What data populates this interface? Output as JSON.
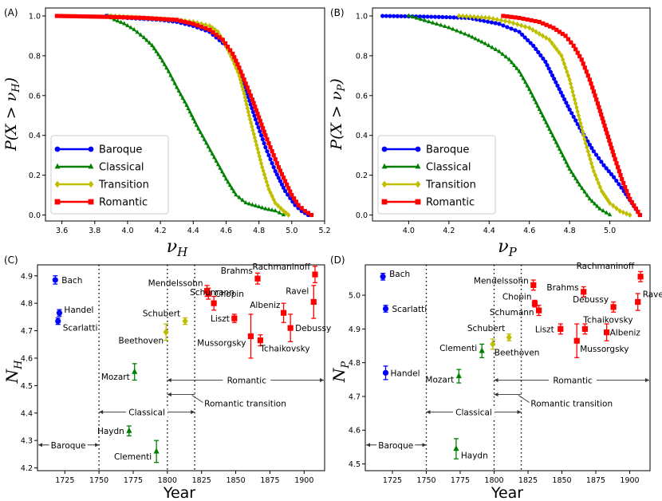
{
  "chart_data": [
    {
      "panel_label": "(A)",
      "type": "line",
      "xlabel": "νH",
      "ylabel": "P(X > νH)",
      "xlim": [
        3.5,
        5.2
      ],
      "ylim": [
        -0.03,
        1.04
      ],
      "xticks": [
        "3.6",
        "3.8",
        "4.0",
        "4.2",
        "4.4",
        "4.6",
        "4.8",
        "5.0",
        "5.2"
      ],
      "yticks": [
        "0.0",
        "0.2",
        "0.4",
        "0.6",
        "0.8",
        "1.0"
      ],
      "legend_position": "lower-left",
      "series": [
        {
          "name": "Baroque",
          "color": "#0000ff",
          "marker": "circle",
          "x": [
            3.87,
            4.0,
            4.1,
            4.2,
            4.3,
            4.4,
            4.5,
            4.6,
            4.66,
            4.72,
            4.78,
            4.84,
            4.9,
            4.96,
            5.02,
            5.06,
            5.1
          ],
          "y": [
            1.0,
            0.99,
            0.985,
            0.98,
            0.97,
            0.95,
            0.92,
            0.85,
            0.76,
            0.63,
            0.48,
            0.34,
            0.22,
            0.12,
            0.05,
            0.02,
            0.0
          ]
        },
        {
          "name": "Classical",
          "color": "#008000",
          "marker": "triangle",
          "x": [
            3.88,
            3.92,
            3.98,
            4.04,
            4.1,
            4.15,
            4.2,
            4.25,
            4.3,
            4.36,
            4.42,
            4.48,
            4.54,
            4.6,
            4.66,
            4.72,
            4.78,
            4.84,
            4.9,
            4.95
          ],
          "y": [
            1.0,
            0.98,
            0.96,
            0.93,
            0.89,
            0.85,
            0.79,
            0.72,
            0.64,
            0.55,
            0.45,
            0.36,
            0.27,
            0.18,
            0.1,
            0.06,
            0.045,
            0.03,
            0.02,
            0.0
          ]
        },
        {
          "name": "Transition",
          "color": "#bfbf00",
          "marker": "diamond",
          "x": [
            3.9,
            4.1,
            4.3,
            4.4,
            4.5,
            4.55,
            4.6,
            4.64,
            4.68,
            4.71,
            4.74,
            4.78,
            4.82,
            4.86,
            4.9,
            4.95,
            4.98
          ],
          "y": [
            1.0,
            0.99,
            0.98,
            0.97,
            0.95,
            0.92,
            0.85,
            0.78,
            0.7,
            0.61,
            0.5,
            0.37,
            0.24,
            0.13,
            0.06,
            0.02,
            0.0
          ]
        },
        {
          "name": "Romantic",
          "color": "#ff0000",
          "marker": "square",
          "x": [
            3.57,
            3.9,
            4.1,
            4.3,
            4.4,
            4.5,
            4.58,
            4.64,
            4.68,
            4.72,
            4.76,
            4.8,
            4.84,
            4.88,
            4.92,
            4.96,
            5.0,
            5.04,
            5.08,
            5.12
          ],
          "y": [
            1.0,
            0.995,
            0.99,
            0.98,
            0.96,
            0.93,
            0.88,
            0.81,
            0.74,
            0.66,
            0.58,
            0.49,
            0.4,
            0.32,
            0.24,
            0.17,
            0.1,
            0.05,
            0.02,
            0.0
          ]
        }
      ]
    },
    {
      "panel_label": "(B)",
      "type": "line",
      "xlabel": "νP",
      "ylabel": "P(X > νP)",
      "xlim": [
        3.82,
        5.2
      ],
      "ylim": [
        -0.03,
        1.04
      ],
      "xticks": [
        "4.0",
        "4.2",
        "4.4",
        "4.6",
        "4.8",
        "5.0"
      ],
      "yticks": [
        "0.0",
        "0.2",
        "0.4",
        "0.6",
        "0.8",
        "1.0"
      ],
      "legend_position": "lower-left",
      "series": [
        {
          "name": "Baroque",
          "color": "#0000ff",
          "marker": "circle",
          "x": [
            3.87,
            4.0,
            4.15,
            4.3,
            4.45,
            4.55,
            4.62,
            4.68,
            4.74,
            4.8,
            4.86,
            4.92,
            4.97,
            5.02,
            5.07,
            5.11,
            5.15
          ],
          "y": [
            1.0,
            0.998,
            0.995,
            0.99,
            0.96,
            0.92,
            0.85,
            0.77,
            0.65,
            0.53,
            0.42,
            0.32,
            0.25,
            0.19,
            0.12,
            0.06,
            0.0
          ]
        },
        {
          "name": "Classical",
          "color": "#008000",
          "marker": "triangle",
          "x": [
            4.0,
            4.1,
            4.2,
            4.3,
            4.38,
            4.45,
            4.5,
            4.55,
            4.6,
            4.65,
            4.7,
            4.75,
            4.8,
            4.85,
            4.9,
            4.95,
            5.0
          ],
          "y": [
            1.0,
            0.97,
            0.94,
            0.9,
            0.86,
            0.82,
            0.78,
            0.72,
            0.63,
            0.53,
            0.43,
            0.33,
            0.23,
            0.15,
            0.08,
            0.03,
            0.0
          ]
        },
        {
          "name": "Transition",
          "color": "#bfbf00",
          "marker": "diamond",
          "x": [
            4.25,
            4.4,
            4.5,
            4.6,
            4.7,
            4.76,
            4.8,
            4.84,
            4.88,
            4.92,
            4.96,
            5.0,
            5.05,
            5.1
          ],
          "y": [
            1.0,
            0.99,
            0.97,
            0.94,
            0.88,
            0.8,
            0.68,
            0.52,
            0.36,
            0.22,
            0.12,
            0.06,
            0.02,
            0.0
          ]
        },
        {
          "name": "Romantic",
          "color": "#ff0000",
          "marker": "square",
          "x": [
            4.47,
            4.55,
            4.65,
            4.72,
            4.78,
            4.82,
            4.86,
            4.9,
            4.94,
            4.98,
            5.02,
            5.06,
            5.1,
            5.15
          ],
          "y": [
            1.0,
            0.99,
            0.97,
            0.94,
            0.9,
            0.85,
            0.78,
            0.68,
            0.56,
            0.43,
            0.3,
            0.18,
            0.08,
            0.0
          ]
        }
      ]
    },
    {
      "panel_label": "(C)",
      "type": "scatter",
      "xlabel": "Year",
      "ylabel": "NH",
      "xlim": [
        1705,
        1915
      ],
      "ylim": [
        4.19,
        4.94
      ],
      "xticks": [
        "1725",
        "1750",
        "1775",
        "1800",
        "1825",
        "1850",
        "1875",
        "1900"
      ],
      "yticks": [
        "4.2",
        "4.3",
        "4.4",
        "4.5",
        "4.6",
        "4.7",
        "4.8",
        "4.9"
      ],
      "period_lines": [
        1750,
        1800,
        1820
      ],
      "periods": [
        "Baroque",
        "Classical",
        "Romantic",
        "Romantic transition"
      ],
      "points": [
        {
          "composer": "Bach",
          "year": 1718,
          "value": 4.885,
          "err": 0.015,
          "era": "Baroque"
        },
        {
          "composer": "Handel",
          "year": 1721,
          "value": 4.765,
          "err": 0.012,
          "era": "Baroque"
        },
        {
          "composer": "Scarlatti",
          "year": 1720,
          "value": 4.735,
          "err": 0.012,
          "era": "Baroque"
        },
        {
          "composer": "Haydn",
          "year": 1772,
          "value": 4.335,
          "err": 0.018,
          "era": "Classical"
        },
        {
          "composer": "Mozart",
          "year": 1776,
          "value": 4.55,
          "err": 0.03,
          "era": "Classical"
        },
        {
          "composer": "Clementi",
          "year": 1792,
          "value": 4.26,
          "err": 0.04,
          "era": "Classical"
        },
        {
          "composer": "Beethoven",
          "year": 1799,
          "value": 4.695,
          "err": 0.03,
          "era": "Transition"
        },
        {
          "composer": "Schubert",
          "year": 1813,
          "value": 4.735,
          "err": 0.012,
          "era": "Transition"
        },
        {
          "composer": "Mendelssohn",
          "year": 1829,
          "value": 4.845,
          "err": 0.02,
          "era": "Romantic"
        },
        {
          "composer": "Chopin",
          "year": 1830,
          "value": 4.835,
          "err": 0.02,
          "era": "Romantic"
        },
        {
          "composer": "Schumann",
          "year": 1834,
          "value": 4.8,
          "err": 0.025,
          "era": "Romantic"
        },
        {
          "composer": "Liszt",
          "year": 1849,
          "value": 4.745,
          "err": 0.015,
          "era": "Romantic"
        },
        {
          "composer": "Brahms",
          "year": 1866,
          "value": 4.89,
          "err": 0.02,
          "era": "Romantic"
        },
        {
          "composer": "Mussorgsky",
          "year": 1861,
          "value": 4.68,
          "err": 0.08,
          "era": "Romantic"
        },
        {
          "composer": "Tchaikovsky",
          "year": 1868,
          "value": 4.665,
          "err": 0.02,
          "era": "Romantic"
        },
        {
          "composer": "Albeniz",
          "year": 1885,
          "value": 4.765,
          "err": 0.035,
          "era": "Romantic"
        },
        {
          "composer": "Debussy",
          "year": 1890,
          "value": 4.71,
          "err": 0.05,
          "era": "Romantic"
        },
        {
          "composer": "Ravel",
          "year": 1907,
          "value": 4.805,
          "err": 0.06,
          "era": "Romantic"
        },
        {
          "composer": "Rachmaninoff",
          "year": 1908,
          "value": 4.905,
          "err": 0.03,
          "era": "Romantic"
        }
      ]
    },
    {
      "panel_label": "(D)",
      "type": "scatter",
      "xlabel": "Year",
      "ylabel": "NP",
      "xlim": [
        1705,
        1915
      ],
      "ylim": [
        4.48,
        5.09
      ],
      "xticks": [
        "1725",
        "1750",
        "1775",
        "1800",
        "1825",
        "1850",
        "1875",
        "1900"
      ],
      "yticks": [
        "4.5",
        "4.6",
        "4.7",
        "4.8",
        "4.9",
        "5.0"
      ],
      "period_lines": [
        1750,
        1800,
        1820
      ],
      "periods": [
        "Baroque",
        "Classical",
        "Romantic",
        "Romantic transition"
      ],
      "points": [
        {
          "composer": "Bach",
          "year": 1718,
          "value": 5.055,
          "err": 0.01,
          "era": "Baroque"
        },
        {
          "composer": "Scarlatti",
          "year": 1720,
          "value": 4.96,
          "err": 0.01,
          "era": "Baroque"
        },
        {
          "composer": "Handel",
          "year": 1720,
          "value": 4.77,
          "err": 0.02,
          "era": "Baroque"
        },
        {
          "composer": "Haydn",
          "year": 1772,
          "value": 4.545,
          "err": 0.03,
          "era": "Classical"
        },
        {
          "composer": "Mozart",
          "year": 1774,
          "value": 4.76,
          "err": 0.02,
          "era": "Classical"
        },
        {
          "composer": "Clementi",
          "year": 1791,
          "value": 4.835,
          "err": 0.02,
          "era": "Classical"
        },
        {
          "composer": "Beethoven",
          "year": 1799,
          "value": 4.855,
          "err": 0.015,
          "era": "Transition"
        },
        {
          "composer": "Schubert",
          "year": 1811,
          "value": 4.875,
          "err": 0.01,
          "era": "Transition"
        },
        {
          "composer": "Mendelssohn",
          "year": 1829,
          "value": 5.03,
          "err": 0.015,
          "era": "Romantic"
        },
        {
          "composer": "Chopin",
          "year": 1830,
          "value": 4.975,
          "err": 0.01,
          "era": "Romantic"
        },
        {
          "composer": "Schumann",
          "year": 1833,
          "value": 4.955,
          "err": 0.015,
          "era": "Romantic"
        },
        {
          "composer": "Liszt",
          "year": 1849,
          "value": 4.9,
          "err": 0.015,
          "era": "Romantic"
        },
        {
          "composer": "Brahms",
          "year": 1866,
          "value": 5.01,
          "err": 0.015,
          "era": "Romantic"
        },
        {
          "composer": "Mussorgsky",
          "year": 1861,
          "value": 4.865,
          "err": 0.05,
          "era": "Romantic"
        },
        {
          "composer": "Tchaikovsky",
          "year": 1867,
          "value": 4.9,
          "err": 0.015,
          "era": "Romantic"
        },
        {
          "composer": "Albeniz",
          "year": 1883,
          "value": 4.89,
          "err": 0.025,
          "era": "Romantic"
        },
        {
          "composer": "Debussy",
          "year": 1888,
          "value": 4.965,
          "err": 0.015,
          "era": "Romantic"
        },
        {
          "composer": "Ravel",
          "year": 1906,
          "value": 4.98,
          "err": 0.025,
          "era": "Romantic"
        },
        {
          "composer": "Rachmaninoff",
          "year": 1908,
          "value": 5.055,
          "err": 0.015,
          "era": "Romantic"
        }
      ]
    }
  ],
  "era_colors": {
    "Baroque": "#0000ff",
    "Classical": "#008000",
    "Transition": "#bfbf00",
    "Romantic": "#ff0000"
  }
}
